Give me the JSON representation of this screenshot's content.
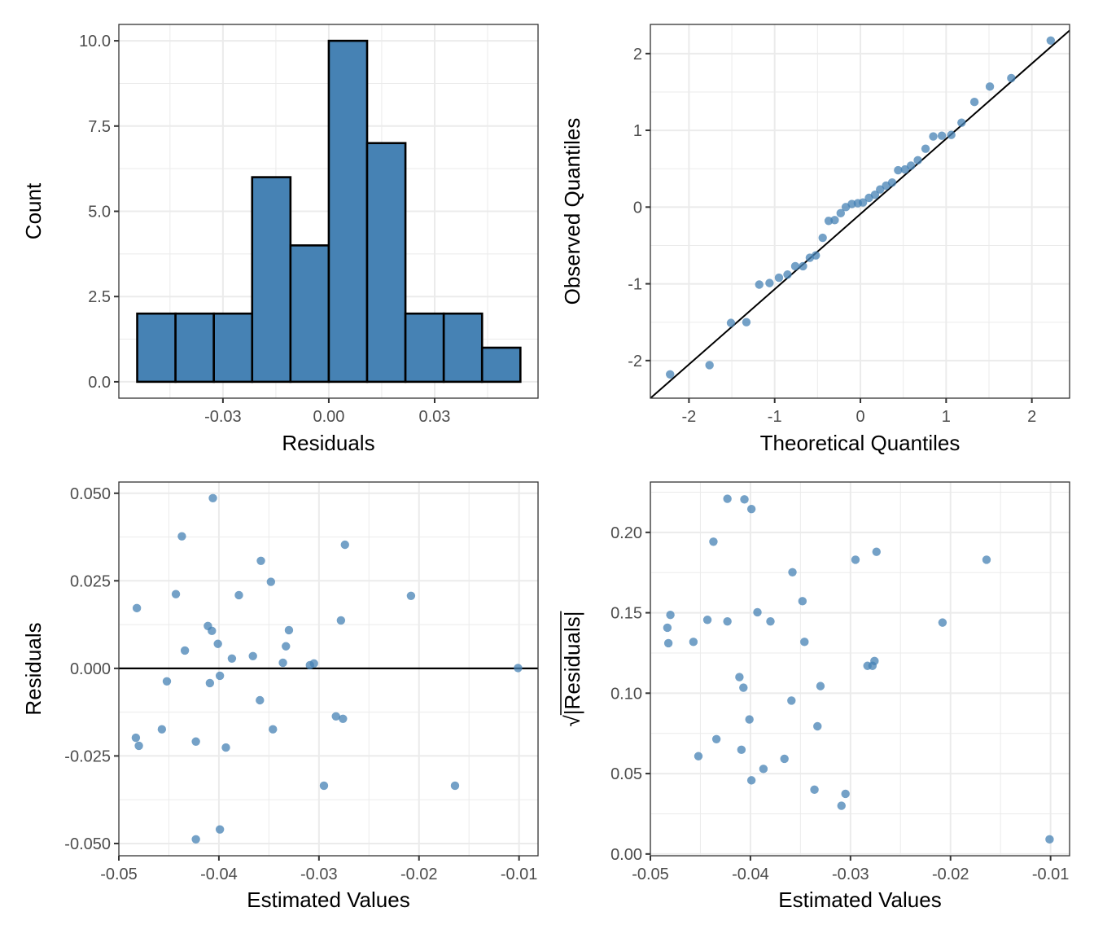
{
  "colors": {
    "bar_fill": "#4682b4",
    "bar_edge": "#000000",
    "point": "#4682b4",
    "ref_line": "#000000"
  },
  "chart_data": [
    {
      "id": "histogram",
      "type": "bar",
      "title": "",
      "xlabel": "Residuals",
      "ylabel": "Count",
      "bin_edges": [
        -0.0543,
        -0.04344,
        -0.03258,
        -0.02172,
        -0.01086,
        0.0,
        0.01086,
        0.02172,
        0.03258,
        0.04344,
        0.0543
      ],
      "values": [
        2,
        2,
        2,
        6,
        4,
        10,
        7,
        2,
        2,
        1
      ],
      "xlim": [
        -0.0595,
        0.0593
      ],
      "ylim": [
        -0.48,
        10.48
      ],
      "xticks": [
        -0.03,
        0.0,
        0.03
      ],
      "xtick_labels": [
        "-0.03",
        "0.00",
        "0.03"
      ],
      "xminor": [
        -0.045,
        -0.015,
        0.015,
        0.045
      ],
      "yticks": [
        0,
        2.5,
        5,
        7.5,
        10
      ],
      "ytick_labels": [
        "0.0",
        "2.5",
        "5.0",
        "7.5",
        "10.0"
      ],
      "yminor": [
        1.25,
        3.75,
        6.25,
        8.75
      ],
      "grid": true
    },
    {
      "id": "qq-plot",
      "type": "scatter",
      "title": "",
      "xlabel": "Theoretical Quantiles",
      "ylabel": "Observed Quantiles",
      "x": [
        -2.22,
        -1.76,
        -1.51,
        -1.33,
        -1.18,
        -1.06,
        -0.95,
        -0.85,
        -0.76,
        -0.67,
        -0.59,
        -0.52,
        -0.44,
        -0.37,
        -0.3,
        -0.23,
        -0.17,
        -0.1,
        -0.03,
        0.03,
        0.1,
        0.17,
        0.23,
        0.3,
        0.37,
        0.44,
        0.52,
        0.59,
        0.67,
        0.76,
        0.85,
        0.95,
        1.06,
        1.18,
        1.33,
        1.51,
        1.76,
        2.22
      ],
      "y": [
        -2.18,
        -2.06,
        -1.51,
        -1.5,
        -1.01,
        -0.99,
        -0.92,
        -0.88,
        -0.77,
        -0.77,
        -0.66,
        -0.63,
        -0.4,
        -0.18,
        -0.17,
        -0.08,
        0.0,
        0.04,
        0.05,
        0.06,
        0.12,
        0.16,
        0.23,
        0.28,
        0.32,
        0.48,
        0.49,
        0.54,
        0.61,
        0.76,
        0.92,
        0.93,
        0.94,
        1.1,
        1.37,
        1.57,
        1.68,
        2.17
      ],
      "reference_line": {
        "intercept": -0.09,
        "slope": 0.98
      },
      "xlim": [
        -2.45,
        2.44
      ],
      "ylim": [
        -2.49,
        2.38
      ],
      "xticks": [
        -2,
        -1,
        0,
        1,
        2
      ],
      "xtick_labels": [
        "-2",
        "-1",
        "0",
        "1",
        "2"
      ],
      "xminor": [
        -1.5,
        -0.5,
        0.5,
        1.5
      ],
      "yticks": [
        -2,
        -1,
        0,
        1,
        2
      ],
      "ytick_labels": [
        "-2",
        "-1",
        "0",
        "1",
        "2"
      ],
      "yminor": [
        -1.5,
        -0.5,
        0.5,
        1.5
      ],
      "grid": true
    },
    {
      "id": "residuals-vs-fitted",
      "type": "scatter",
      "title": "",
      "xlabel": "Estimated Values",
      "ylabel": "Residuals",
      "x": [
        -0.0406,
        -0.0437,
        -0.0274,
        -0.0358,
        -0.0348,
        -0.0443,
        -0.038,
        -0.0208,
        -0.0482,
        -0.0411,
        -0.0278,
        -0.0407,
        -0.033,
        -0.0401,
        -0.0434,
        -0.0333,
        -0.0387,
        -0.0366,
        -0.0336,
        -0.0309,
        -0.0305,
        -0.0101,
        -0.0399,
        -0.0452,
        -0.0409,
        -0.0359,
        -0.0283,
        -0.0276,
        -0.0457,
        -0.0346,
        -0.0483,
        -0.048,
        -0.0423,
        -0.0393,
        -0.0295,
        -0.0164,
        -0.0399,
        -0.0423
      ],
      "y": [
        0.0486,
        0.0377,
        0.0353,
        0.0307,
        0.0247,
        0.0212,
        0.0209,
        0.0207,
        0.0172,
        0.0121,
        0.0137,
        0.0107,
        0.0109,
        0.007,
        0.0051,
        0.0063,
        0.0028,
        0.0035,
        0.0016,
        0.0009,
        0.0014,
        0.0001,
        -0.0021,
        -0.0037,
        -0.0042,
        -0.0091,
        -0.0137,
        -0.0144,
        -0.0174,
        -0.0174,
        -0.0198,
        -0.0221,
        -0.0209,
        -0.0226,
        -0.0335,
        -0.0335,
        -0.046,
        -0.0488
      ],
      "hline": 0,
      "xlim": [
        -0.05,
        -0.0081
      ],
      "ylim": [
        -0.0535,
        0.0532
      ],
      "xticks": [
        -0.05,
        -0.04,
        -0.03,
        -0.02,
        -0.01
      ],
      "xtick_labels": [
        "-0.05",
        "-0.04",
        "-0.03",
        "-0.02",
        "-0.01"
      ],
      "xminor": [
        -0.045,
        -0.035,
        -0.025,
        -0.015
      ],
      "yticks": [
        -0.05,
        -0.025,
        0.0,
        0.025,
        0.05
      ],
      "ytick_labels": [
        "-0.050",
        "-0.025",
        "0.000",
        "0.025",
        "0.050"
      ],
      "yminor": [
        -0.0375,
        -0.0125,
        0.0125,
        0.0375
      ],
      "grid": true
    },
    {
      "id": "scale-location",
      "type": "scatter",
      "title": "",
      "xlabel": "Estimated Values",
      "ylabel_prefix": "√",
      "ylabel": "|Residuals|",
      "x": [
        -0.0406,
        -0.0437,
        -0.0274,
        -0.0358,
        -0.0348,
        -0.0443,
        -0.038,
        -0.0208,
        -0.0482,
        -0.0411,
        -0.0278,
        -0.0407,
        -0.033,
        -0.0401,
        -0.0434,
        -0.0333,
        -0.0387,
        -0.0366,
        -0.0336,
        -0.0309,
        -0.0305,
        -0.0101,
        -0.0399,
        -0.0452,
        -0.0409,
        -0.0359,
        -0.0283,
        -0.0276,
        -0.0457,
        -0.0346,
        -0.0483,
        -0.048,
        -0.0423,
        -0.0393,
        -0.0295,
        -0.0164,
        -0.0399,
        -0.0423
      ],
      "y": [
        0.2205,
        0.1942,
        0.1879,
        0.1752,
        0.1572,
        0.1456,
        0.1446,
        0.1439,
        0.1311,
        0.11,
        0.117,
        0.1034,
        0.1044,
        0.0837,
        0.0714,
        0.0794,
        0.0529,
        0.0592,
        0.04,
        0.03,
        0.0374,
        0.0091,
        0.0458,
        0.0608,
        0.0648,
        0.0954,
        0.117,
        0.12,
        0.1319,
        0.1319,
        0.1407,
        0.1487,
        0.1446,
        0.1503,
        0.183,
        0.183,
        0.2145,
        0.2209
      ],
      "xlim": [
        -0.05,
        -0.0081
      ],
      "ylim": [
        -0.0011,
        0.2313
      ],
      "xticks": [
        -0.05,
        -0.04,
        -0.03,
        -0.02,
        -0.01
      ],
      "xtick_labels": [
        "-0.05",
        "-0.04",
        "-0.03",
        "-0.02",
        "-0.01"
      ],
      "xminor": [
        -0.045,
        -0.035,
        -0.025,
        -0.015
      ],
      "yticks": [
        0.0,
        0.05,
        0.1,
        0.15,
        0.2
      ],
      "ytick_labels": [
        "0.00",
        "0.05",
        "0.10",
        "0.15",
        "0.20"
      ],
      "yminor": [
        0.025,
        0.075,
        0.125,
        0.175,
        0.225
      ],
      "grid": true
    }
  ]
}
